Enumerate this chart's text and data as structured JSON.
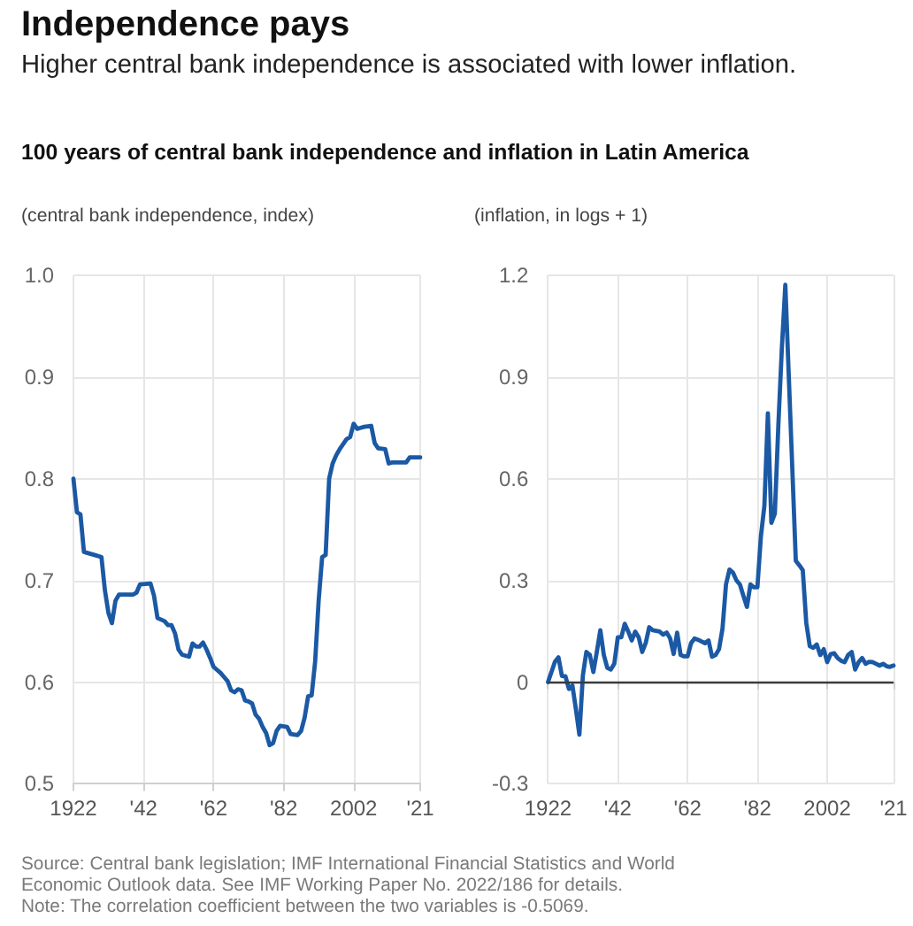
{
  "chart_data": [
    {
      "type": "line",
      "title": "Independence pays",
      "subtitle": "Higher central bank independence is associated with lower inflation.",
      "ylabel": "(central bank independence, index)",
      "annotations": [
        "100 years of central bank independence and inflation in Latin America",
        "Source: Central bank legislation; IMF International Financial Statistics and World Economic Outlook data. See IMF Working Paper No. 2022/186 for details.",
        "Note: The correlation coefficient between the two variables is -0.5069."
      ],
      "x": [
        1922,
        1923,
        1924,
        1925,
        1926,
        1928,
        1930,
        1931,
        1932,
        1933,
        1934,
        1935,
        1939,
        1940,
        1941,
        1944,
        1945,
        1946,
        1948,
        1949,
        1950,
        1951,
        1952,
        1953,
        1955,
        1956,
        1957,
        1958,
        1959,
        1960,
        1961,
        1962,
        1963,
        1964,
        1965,
        1966,
        1967,
        1968,
        1969,
        1970,
        1971,
        1972,
        1973,
        1974,
        1975,
        1976,
        1977,
        1978,
        1979,
        1980,
        1981,
        1983,
        1984,
        1986,
        1987,
        1988,
        1989,
        1990,
        1991,
        1992,
        1993,
        1994,
        1995,
        1996,
        1997,
        1998,
        1999,
        2000,
        2001,
        2002,
        2003,
        2004,
        2005,
        2007,
        2008,
        2009,
        2011,
        2012,
        2013,
        2017,
        2018,
        2021
      ],
      "values": [
        0.8,
        0.767,
        0.765,
        0.728,
        0.727,
        0.725,
        0.723,
        0.69,
        0.668,
        0.658,
        0.68,
        0.686,
        0.686,
        0.688,
        0.696,
        0.697,
        0.685,
        0.663,
        0.66,
        0.656,
        0.656,
        0.648,
        0.632,
        0.627,
        0.625,
        0.638,
        0.635,
        0.635,
        0.639,
        0.632,
        0.624,
        0.615,
        0.612,
        0.609,
        0.605,
        0.601,
        0.592,
        0.59,
        0.593,
        0.592,
        0.582,
        0.581,
        0.579,
        0.568,
        0.564,
        0.556,
        0.55,
        0.538,
        0.54,
        0.552,
        0.557,
        0.556,
        0.549,
        0.548,
        0.552,
        0.565,
        0.586,
        0.587,
        0.62,
        0.68,
        0.723,
        0.725,
        0.8,
        0.815,
        0.823,
        0.829,
        0.834,
        0.839,
        0.841,
        0.854,
        0.849,
        0.85,
        0.851,
        0.852,
        0.835,
        0.83,
        0.829,
        0.815,
        0.816,
        0.816,
        0.821,
        0.821
      ],
      "color": "#1b59a4",
      "xlim": [
        1922,
        2021
      ],
      "xticks": [
        {
          "value": 1922,
          "label": "1922"
        },
        {
          "value": 1942,
          "label": "'42"
        },
        {
          "value": 1962,
          "label": "'62"
        },
        {
          "value": 1982,
          "label": "'82"
        },
        {
          "value": 2002,
          "label": "2002"
        },
        {
          "value": 2021,
          "label": "'21"
        }
      ],
      "ylim": [
        0.5,
        1.0
      ],
      "yticks": [
        0.5,
        0.6,
        0.7,
        0.8,
        0.9,
        {
          "value": 1.0,
          "label": "1.0"
        }
      ],
      "grid": true,
      "marker": "none",
      "line_style": "solid"
    },
    {
      "type": "line",
      "ylabel": "(inflation, in logs + 1)",
      "x": [
        1922,
        1923,
        1924,
        1925,
        1926,
        1927,
        1928,
        1929,
        1930,
        1931,
        1932,
        1933,
        1934,
        1935,
        1936,
        1937,
        1938,
        1939,
        1940,
        1941,
        1942,
        1943,
        1944,
        1945,
        1946,
        1947,
        1948,
        1949,
        1950,
        1951,
        1952,
        1953,
        1954,
        1955,
        1956,
        1957,
        1958,
        1959,
        1960,
        1961,
        1962,
        1963,
        1964,
        1965,
        1966,
        1967,
        1968,
        1969,
        1970,
        1971,
        1972,
        1973,
        1974,
        1975,
        1976,
        1977,
        1978,
        1979,
        1980,
        1981,
        1982,
        1983,
        1984,
        1985,
        1986,
        1987,
        1988,
        1989,
        1990,
        1991,
        1992,
        1993,
        1994,
        1995,
        1996,
        1997,
        1998,
        1999,
        2000,
        2001,
        2002,
        2003,
        2004,
        2005,
        2006,
        2007,
        2008,
        2009,
        2010,
        2011,
        2012,
        2013,
        2014,
        2015,
        2016,
        2017,
        2018,
        2019,
        2020,
        2021
      ],
      "values": [
        0,
        0.03,
        0.06,
        0.073,
        0.018,
        0.017,
        -0.02,
        -0.01,
        -0.08,
        -0.155,
        0.02,
        0.089,
        0.08,
        0.03,
        0.09,
        0.153,
        0.08,
        0.042,
        0.037,
        0.054,
        0.132,
        0.132,
        0.172,
        0.149,
        0.123,
        0.149,
        0.132,
        0.089,
        0.115,
        0.162,
        0.153,
        0.151,
        0.149,
        0.14,
        0.146,
        0.129,
        0.083,
        0.146,
        0.08,
        0.076,
        0.076,
        0.115,
        0.129,
        0.125,
        0.12,
        0.115,
        0.123,
        0.075,
        0.08,
        0.097,
        0.158,
        0.288,
        0.332,
        0.323,
        0.3,
        0.288,
        0.254,
        0.222,
        0.288,
        0.28,
        0.28,
        0.43,
        0.52,
        0.793,
        0.47,
        0.497,
        0.758,
        0.984,
        1.172,
        0.9,
        0.63,
        0.358,
        0.345,
        0.33,
        0.175,
        0.106,
        0.101,
        0.111,
        0.08,
        0.097,
        0.059,
        0.083,
        0.085,
        0.071,
        0.063,
        0.059,
        0.08,
        0.089,
        0.037,
        0.059,
        0.071,
        0.054,
        0.06,
        0.059,
        0.054,
        0.049,
        0.054,
        0.047,
        0.045,
        0.049
      ],
      "color": "#1b59a4",
      "xlim": [
        1922,
        2021
      ],
      "xticks": [
        {
          "value": 1922,
          "label": "1922"
        },
        {
          "value": 1942,
          "label": "'42"
        },
        {
          "value": 1962,
          "label": "'62"
        },
        {
          "value": 1982,
          "label": "'82"
        },
        {
          "value": 2002,
          "label": "2002"
        },
        {
          "value": 2021,
          "label": "'21"
        }
      ],
      "ylim": [
        -0.3,
        1.2
      ],
      "yticks": [
        -0.3,
        0,
        0.3,
        0.6,
        0.9,
        1.2
      ],
      "grid": true,
      "marker": "none",
      "line_style": "solid",
      "ref_lines": [
        {
          "axis": "y",
          "value": 0,
          "color": "#3a3a3a"
        }
      ]
    }
  ]
}
